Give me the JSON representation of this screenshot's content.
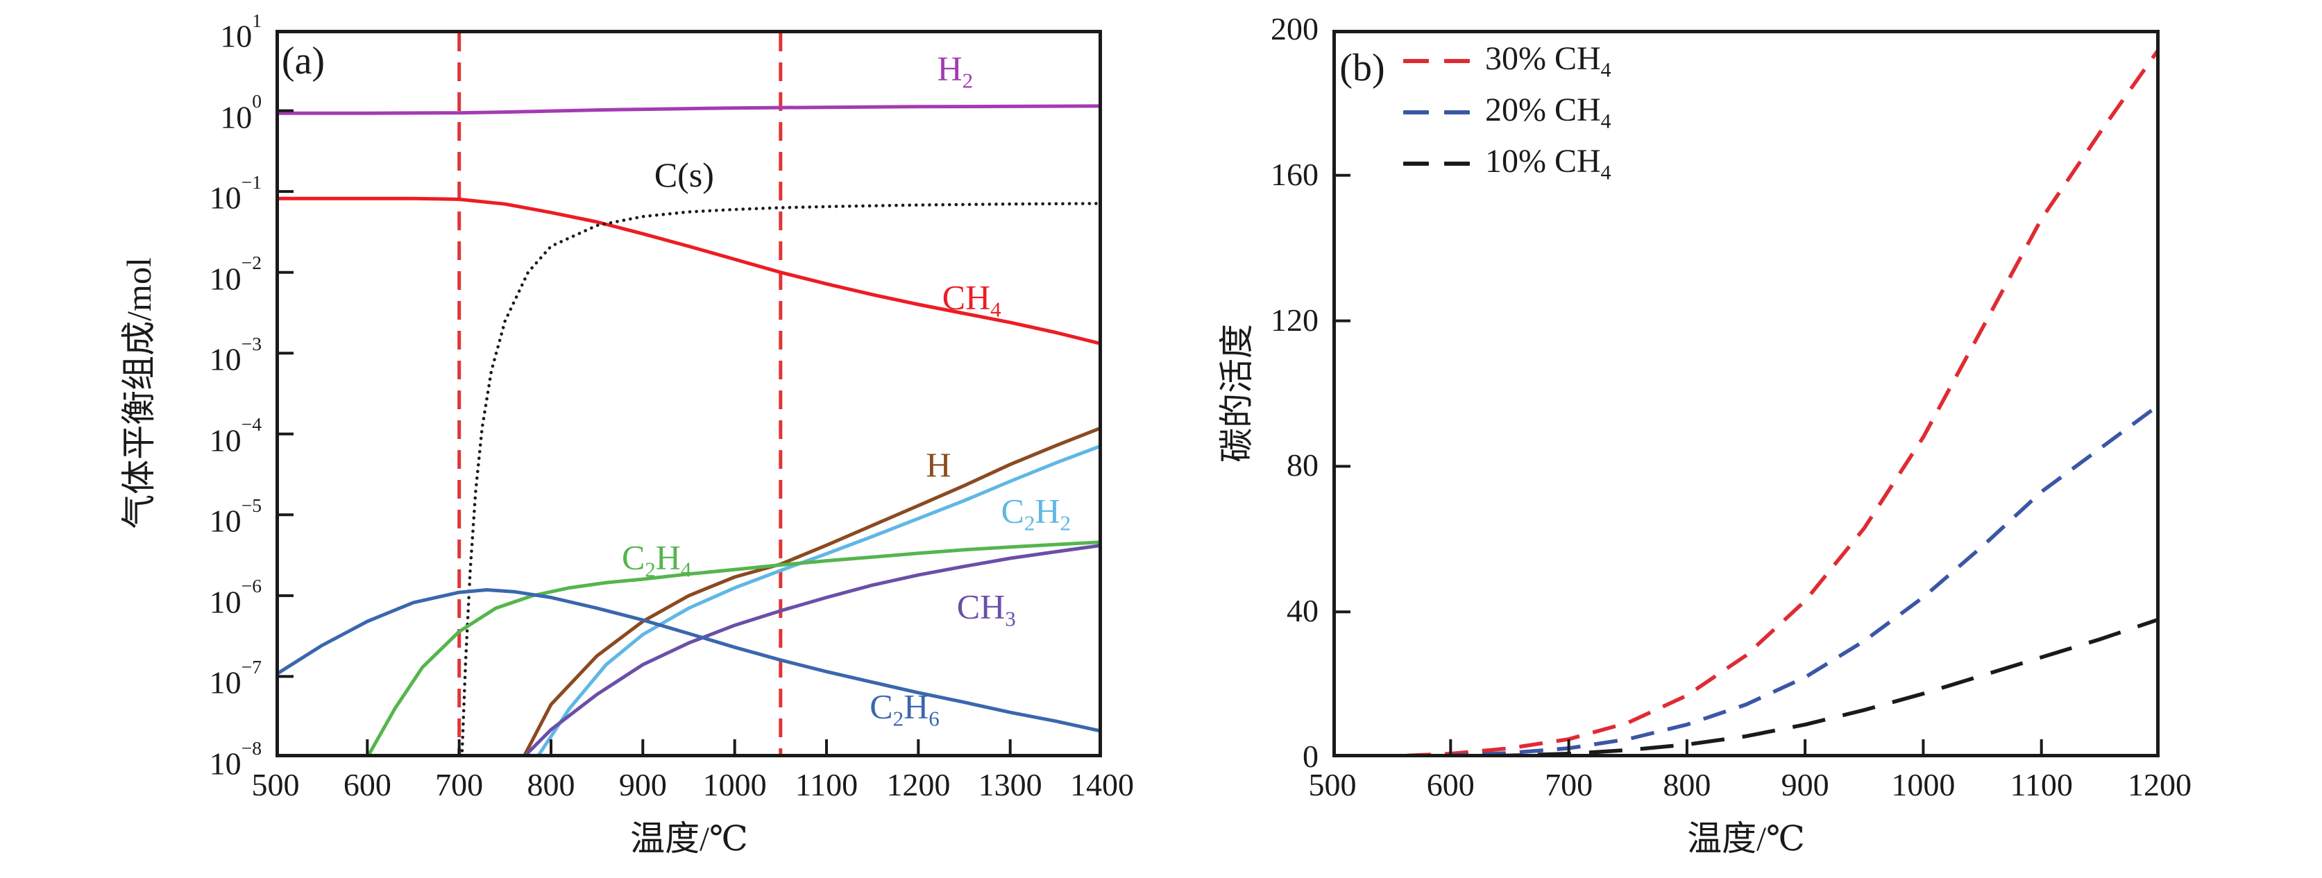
{
  "ink_color": "#1a1a1a",
  "chart_data": [
    {
      "id": "a",
      "type": "line",
      "panel_label": "(a)",
      "xlabel": "温度/℃",
      "ylabel": "气体平衡组成/mol",
      "x_ticks": [
        500,
        600,
        700,
        800,
        900,
        1000,
        1100,
        1200,
        1300,
        1400
      ],
      "xlim": [
        500,
        1400
      ],
      "y_scale": "log",
      "y_tick_exponents": [
        1,
        0,
        -1,
        -2,
        -3,
        -4,
        -5,
        -6,
        -7,
        -8
      ],
      "ylim_exp": [
        -8,
        1
      ],
      "grid": false,
      "vlines": [
        {
          "x": 700,
          "color": "#e03636",
          "style": "dashed"
        },
        {
          "x": 1050,
          "color": "#e03636",
          "style": "dashed"
        }
      ],
      "series": [
        {
          "name": "H2",
          "label": "H_2",
          "color": "#a43bb3",
          "line": "solid",
          "label_pos": [
            1240,
            3.1
          ],
          "points": [
            [
              500,
              0.93
            ],
            [
              600,
              0.93
            ],
            [
              700,
              0.94
            ],
            [
              750,
              0.96
            ],
            [
              800,
              0.99
            ],
            [
              850,
              1.02
            ],
            [
              900,
              1.04
            ],
            [
              950,
              1.06
            ],
            [
              1000,
              1.08
            ],
            [
              1100,
              1.1
            ],
            [
              1200,
              1.12
            ],
            [
              1300,
              1.13
            ],
            [
              1400,
              1.14
            ]
          ]
        },
        {
          "name": "CH4",
          "label": "CH_4",
          "color": "#ed1c24",
          "line": "solid",
          "label_pos": [
            1258,
            0.0046
          ],
          "points": [
            [
              500,
              0.082
            ],
            [
              600,
              0.082
            ],
            [
              650,
              0.082
            ],
            [
              700,
              0.08
            ],
            [
              750,
              0.07
            ],
            [
              800,
              0.055
            ],
            [
              850,
              0.042
            ],
            [
              900,
              0.03
            ],
            [
              950,
              0.021
            ],
            [
              1000,
              0.0145
            ],
            [
              1050,
              0.01
            ],
            [
              1100,
              0.0072
            ],
            [
              1150,
              0.0053
            ],
            [
              1200,
              0.004
            ],
            [
              1250,
              0.0031
            ],
            [
              1300,
              0.0024
            ],
            [
              1350,
              0.0018
            ],
            [
              1400,
              0.0013
            ]
          ]
        },
        {
          "name": "Cs",
          "label": "C(s)",
          "color": "#1a1a1a",
          "line": "dotted",
          "label_pos": [
            945,
            0.16
          ],
          "points": [
            [
              703,
              1e-08
            ],
            [
              707,
              1.5e-07
            ],
            [
              712,
              2e-06
            ],
            [
              718,
              2e-05
            ],
            [
              725,
              0.00012
            ],
            [
              735,
              0.0006
            ],
            [
              750,
              0.0025
            ],
            [
              775,
              0.01
            ],
            [
              800,
              0.021
            ],
            [
              850,
              0.038
            ],
            [
              900,
              0.049
            ],
            [
              950,
              0.056
            ],
            [
              1000,
              0.06
            ],
            [
              1050,
              0.063
            ],
            [
              1100,
              0.065
            ],
            [
              1200,
              0.068
            ],
            [
              1300,
              0.07
            ],
            [
              1400,
              0.071
            ]
          ]
        },
        {
          "name": "H",
          "label": "H",
          "color": "#8b4a21",
          "line": "solid",
          "label_pos": [
            1222,
            4.2e-05
          ],
          "points": [
            [
              770,
              1e-08
            ],
            [
              800,
              4.5e-08
            ],
            [
              850,
              1.8e-07
            ],
            [
              900,
              4.8e-07
            ],
            [
              950,
              1e-06
            ],
            [
              1000,
              1.7e-06
            ],
            [
              1050,
              2.45e-06
            ],
            [
              1100,
              4.2e-06
            ],
            [
              1150,
              7.4e-06
            ],
            [
              1200,
              1.3e-05
            ],
            [
              1250,
              2.3e-05
            ],
            [
              1300,
              4.2e-05
            ],
            [
              1350,
              7.2e-05
            ],
            [
              1400,
              0.00012
            ]
          ]
        },
        {
          "name": "C2H2",
          "label": "C_2H_2",
          "color": "#5fb7e5",
          "line": "solid",
          "label_pos": [
            1328,
            1.05e-05
          ],
          "points": [
            [
              785,
              1e-08
            ],
            [
              820,
              4e-08
            ],
            [
              860,
              1.4e-07
            ],
            [
              900,
              3.3e-07
            ],
            [
              950,
              7e-07
            ],
            [
              1000,
              1.25e-06
            ],
            [
              1050,
              2.05e-06
            ],
            [
              1100,
              3.3e-06
            ],
            [
              1150,
              5.4e-06
            ],
            [
              1200,
              9e-06
            ],
            [
              1250,
              1.5e-05
            ],
            [
              1300,
              2.6e-05
            ],
            [
              1350,
              4.4e-05
            ],
            [
              1400,
              7.2e-05
            ]
          ]
        },
        {
          "name": "C2H4",
          "label": "C_2H_4",
          "color": "#55b54c",
          "line": "solid",
          "label_pos": [
            915,
            2.8e-06
          ],
          "points": [
            [
              600,
              1e-08
            ],
            [
              630,
              4e-08
            ],
            [
              660,
              1.3e-07
            ],
            [
              700,
              3.6e-07
            ],
            [
              740,
              7e-07
            ],
            [
              780,
              1e-06
            ],
            [
              820,
              1.25e-06
            ],
            [
              860,
              1.45e-06
            ],
            [
              900,
              1.6e-06
            ],
            [
              950,
              1.85e-06
            ],
            [
              1000,
              2.1e-06
            ],
            [
              1050,
              2.4e-06
            ],
            [
              1100,
              2.7e-06
            ],
            [
              1150,
              3e-06
            ],
            [
              1200,
              3.35e-06
            ],
            [
              1250,
              3.7e-06
            ],
            [
              1300,
              4e-06
            ],
            [
              1350,
              4.3e-06
            ],
            [
              1400,
              4.6e-06
            ]
          ]
        },
        {
          "name": "CH3",
          "label": "CH_3",
          "color": "#6a4fa8",
          "line": "solid",
          "label_pos": [
            1274,
            6.8e-07
          ],
          "points": [
            [
              770,
              1e-08
            ],
            [
              800,
              2.2e-08
            ],
            [
              850,
              6e-08
            ],
            [
              900,
              1.4e-07
            ],
            [
              950,
              2.6e-07
            ],
            [
              1000,
              4.3e-07
            ],
            [
              1050,
              6.5e-07
            ],
            [
              1100,
              9.5e-07
            ],
            [
              1150,
              1.35e-06
            ],
            [
              1200,
              1.8e-06
            ],
            [
              1250,
              2.3e-06
            ],
            [
              1300,
              2.9e-06
            ],
            [
              1350,
              3.5e-06
            ],
            [
              1400,
              4.2e-06
            ]
          ]
        },
        {
          "name": "C2H6",
          "label": "C_2H_6",
          "color": "#3a67ae",
          "line": "solid",
          "label_pos": [
            1185,
            4e-08
          ],
          "points": [
            [
              500,
              1.05e-07
            ],
            [
              550,
              2.4e-07
            ],
            [
              600,
              4.8e-07
            ],
            [
              650,
              8.2e-07
            ],
            [
              700,
              1.1e-06
            ],
            [
              730,
              1.18e-06
            ],
            [
              760,
              1.12e-06
            ],
            [
              800,
              9.5e-07
            ],
            [
              850,
              7e-07
            ],
            [
              900,
              5e-07
            ],
            [
              950,
              3.4e-07
            ],
            [
              1000,
              2.3e-07
            ],
            [
              1050,
              1.6e-07
            ],
            [
              1100,
              1.15e-07
            ],
            [
              1150,
              8.5e-08
            ],
            [
              1200,
              6.3e-08
            ],
            [
              1250,
              4.8e-08
            ],
            [
              1300,
              3.6e-08
            ],
            [
              1350,
              2.8e-08
            ],
            [
              1400,
              2.1e-08
            ]
          ]
        }
      ]
    },
    {
      "id": "b",
      "type": "line",
      "panel_label": "(b)",
      "xlabel": "温度/℃",
      "ylabel": "碳的活度",
      "x_ticks": [
        500,
        600,
        700,
        800,
        900,
        1000,
        1100,
        1200
      ],
      "xlim": [
        500,
        1200
      ],
      "y_scale": "linear",
      "y_ticks": [
        0,
        40,
        80,
        120,
        160,
        200
      ],
      "ylim": [
        0,
        200
      ],
      "grid": false,
      "legend_position": "top-left-inside",
      "legend": [
        {
          "label": "30% CH_4",
          "color": "#df2b33"
        },
        {
          "label": "20% CH_4",
          "color": "#3b56a6"
        },
        {
          "label": "10% CH_4",
          "color": "#1a1a1a"
        }
      ],
      "x": [
        500,
        550,
        600,
        650,
        700,
        750,
        800,
        850,
        900,
        950,
        1000,
        1050,
        1100,
        1150,
        1200
      ],
      "series": [
        {
          "name": "30pct-CH4",
          "label": "30% CH_4",
          "color": "#df2b33",
          "line": "dashed",
          "values": [
            0,
            0.3,
            1,
            2.5,
            5,
            9.5,
            17,
            28,
            43,
            63,
            88,
            118,
            148,
            172,
            195
          ]
        },
        {
          "name": "20pct-CH4",
          "label": "20% CH_4",
          "color": "#3b56a6",
          "line": "dashed",
          "values": [
            0,
            0.15,
            0.5,
            1.2,
            2.5,
            5,
            9,
            14.5,
            22,
            32,
            44,
            58,
            73,
            85,
            97
          ]
        },
        {
          "name": "10pct-CH4",
          "label": "10% CH_4",
          "color": "#1a1a1a",
          "line": "dashed",
          "values": [
            0,
            0.05,
            0.2,
            0.5,
            1,
            2,
            3.5,
            5.8,
            9,
            13,
            17.5,
            22.5,
            27.5,
            32.5,
            38
          ]
        }
      ]
    }
  ]
}
